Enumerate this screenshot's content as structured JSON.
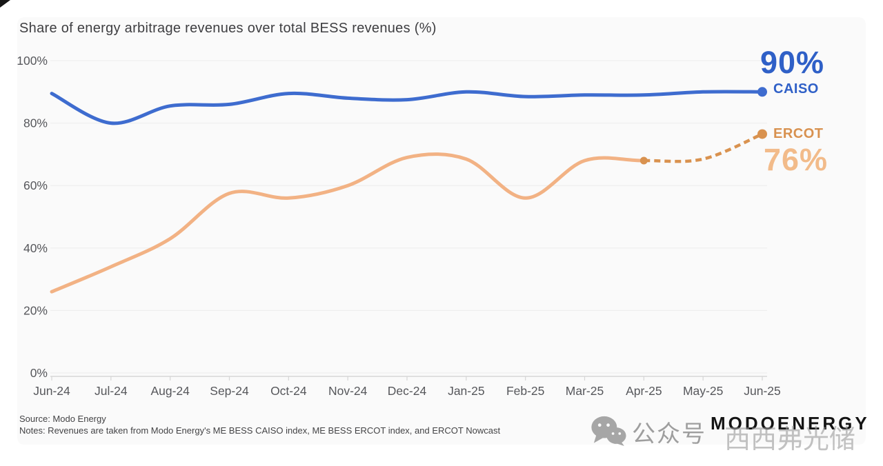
{
  "title": "Share of energy arbitrage revenues over total BESS revenues (%)",
  "chart_data": {
    "type": "line",
    "x": [
      "Jun-24",
      "Jul-24",
      "Aug-24",
      "Sep-24",
      "Oct-24",
      "Nov-24",
      "Dec-24",
      "Jan-25",
      "Feb-25",
      "Mar-25",
      "Apr-25",
      "May-25",
      "Jun-25"
    ],
    "ylim": [
      0,
      100
    ],
    "yticks": [
      0,
      20,
      40,
      60,
      80,
      100
    ],
    "ytick_suffix": "%",
    "grid": "horizontal",
    "legend_position": "right of line ends",
    "series": [
      {
        "name": "CAISO",
        "line_style": "solid",
        "color": "#3e6ccf",
        "end_label": "90%",
        "values": [
          89.5,
          80,
          85.5,
          86,
          89.5,
          88,
          87.5,
          90,
          88.5,
          89,
          89,
          90,
          90
        ]
      },
      {
        "name": "ERCOT",
        "line_style": "solid, dashed forecast from Apr-25 onward",
        "color": "#f2b284",
        "dashed_color": "#d9924f",
        "dashed_from_index": 10,
        "end_label": "76%",
        "values": [
          26,
          34,
          43,
          57.5,
          56,
          60,
          69,
          68.5,
          56,
          68,
          68,
          68.5,
          76.5
        ]
      }
    ]
  },
  "footer": {
    "source": "Source: Modo Energy",
    "notes": "Notes: Revenues are taken from Modo Energy's ME BESS CAISO index, ME BESS ERCOT index, and ERCOT Nowcast"
  },
  "branding": {
    "logo_text": "MODOENERGY",
    "wechat_icon": "wechat-icon",
    "wechat_label": "公众号",
    "watermark_text": "西西弗光储"
  },
  "colors": {
    "caiso_text": "#2f60c7",
    "ercot_label_text": "#d8914f",
    "ercot_value_text": "#f2bb8a",
    "grid_line": "#ececec",
    "axis_line": "#d6d6d6",
    "tick_label": "#56575b",
    "title_text": "#3e3e41",
    "footer_text": "#434345",
    "card_background": "#fafafa",
    "logo_text_color": "#141414",
    "watermark_gray": "#9e9e9e"
  }
}
